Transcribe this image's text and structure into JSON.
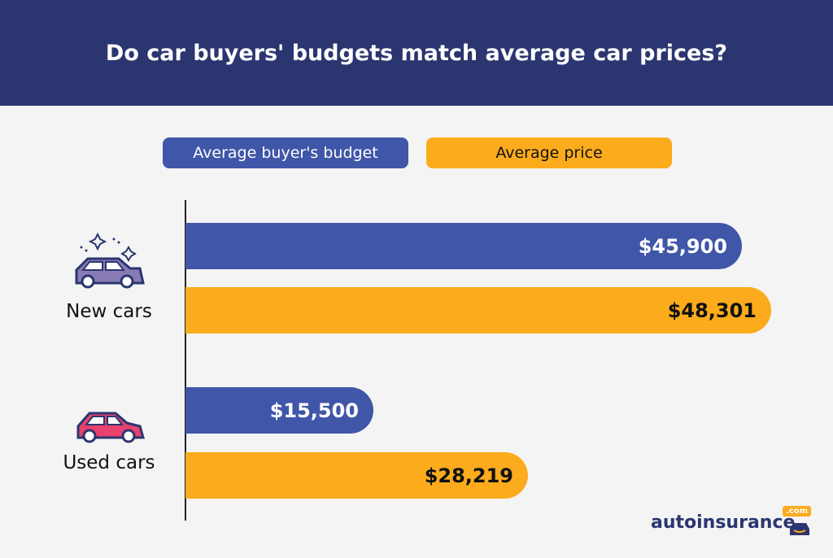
{
  "title": "Do car buyers' budgets match average car prices?",
  "colors": {
    "header": "#2b3670",
    "budget": "#4056a8",
    "price": "#fbab1c",
    "background": "#f4f4f4"
  },
  "chart_data": {
    "type": "bar",
    "orientation": "horizontal",
    "title": "Do car buyers' budgets match average car prices?",
    "categories": [
      "New cars",
      "Used cars"
    ],
    "series": [
      {
        "name": "Average buyer's budget",
        "values": [
          45900,
          15500
        ],
        "labels": [
          "$45,900",
          "$15,500"
        ],
        "color": "#4056a8"
      },
      {
        "name": "Average price",
        "values": [
          48301,
          28219
        ],
        "labels": [
          "$48,301",
          "$28,219"
        ],
        "color": "#fbab1c"
      }
    ],
    "legend": "top",
    "grid": false
  },
  "icons": {
    "new_cars": "sparkling-car-icon",
    "used_cars": "car-icon"
  },
  "brand": {
    "name": "autoinsurance",
    "suffix": ".com"
  }
}
